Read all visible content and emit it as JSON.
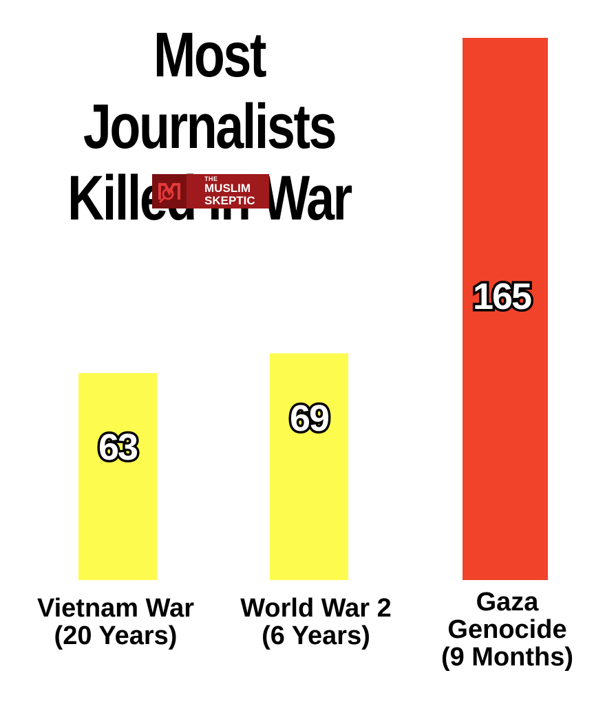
{
  "chart_data": {
    "type": "bar",
    "title_lines": [
      "Most Journalists",
      "Killed In War"
    ],
    "categories": [
      [
        "Vietnam War",
        "(20 Years)"
      ],
      [
        "World War 2",
        "(6 Years)"
      ],
      [
        "Gaza",
        "Genocide",
        "(9 Months)"
      ]
    ],
    "values": [
      63,
      69,
      165
    ],
    "bar_colors": [
      "#fdfc4e",
      "#fdfc4e",
      "#f0432a"
    ],
    "xlabel": "",
    "ylabel": "",
    "ylim": [
      0,
      165
    ],
    "grid": false,
    "legend": "none"
  },
  "logo": {
    "line1": "THE",
    "line2": "MUSLIM",
    "line3": "SKEPTIC"
  }
}
